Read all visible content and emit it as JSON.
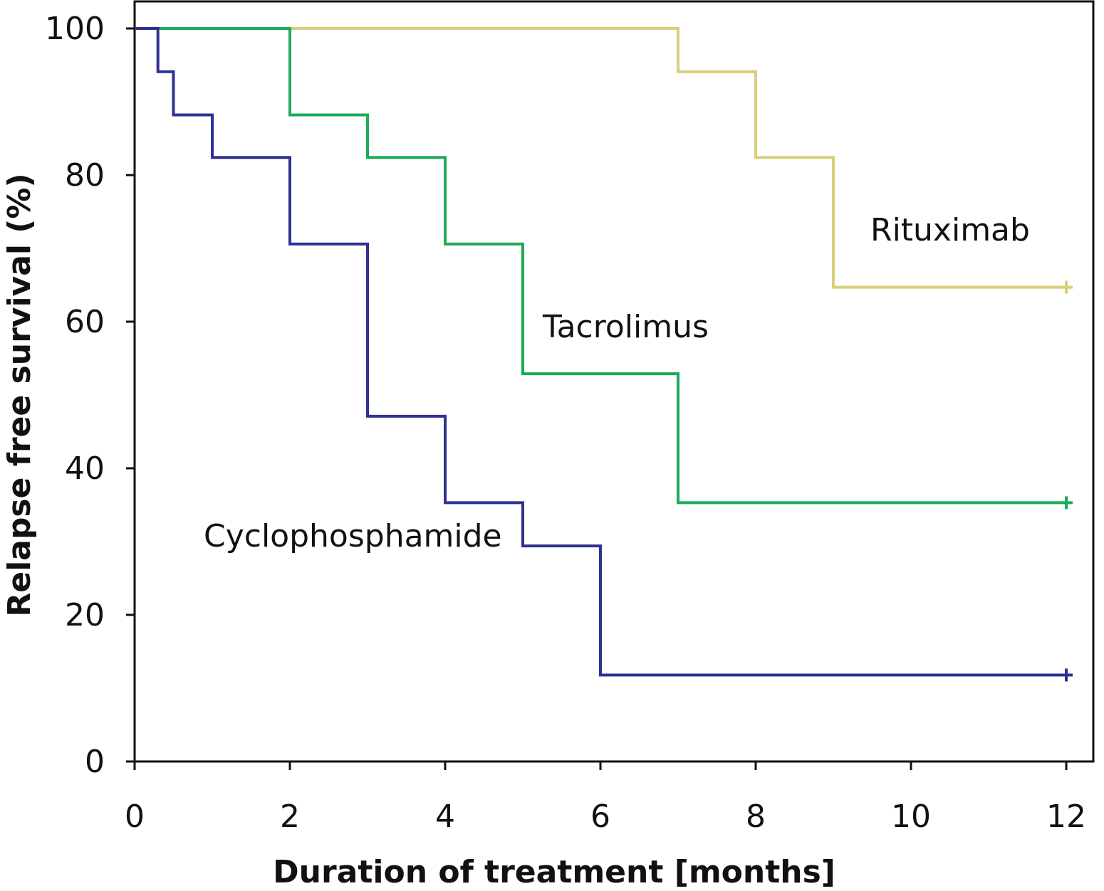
{
  "chart_data": {
    "type": "line",
    "step": true,
    "xlabel": "Duration of treatment [months]",
    "ylabel": "Relapse free survival (%)",
    "xlim": [
      0,
      12
    ],
    "ylim": [
      0,
      100
    ],
    "xticks": [
      0,
      2,
      4,
      6,
      8,
      10,
      12
    ],
    "yticks": [
      0,
      20,
      40,
      60,
      80,
      100
    ],
    "grid": false,
    "legend": "inline labels",
    "series": [
      {
        "name": "Rituximab",
        "color": "#d8cf7a",
        "censor_end": true,
        "x": [
          0,
          7,
          8,
          9,
          12
        ],
        "y": [
          100,
          94.1,
          82.4,
          64.7,
          64.7
        ]
      },
      {
        "name": "Tacrolimus",
        "color": "#1faa5a",
        "censor_end": true,
        "x": [
          0,
          2,
          3,
          4,
          5,
          7,
          12
        ],
        "y": [
          100,
          88.2,
          82.4,
          70.6,
          52.9,
          35.3,
          35.3
        ]
      },
      {
        "name": "Cyclophosphamide",
        "color": "#2e3192",
        "censor_end": true,
        "x": [
          0,
          0.3,
          0.5,
          1,
          2,
          3,
          4,
          5,
          6,
          12
        ],
        "y": [
          100,
          94.1,
          88.2,
          82.4,
          70.6,
          47.1,
          35.3,
          29.4,
          11.8,
          11.8
        ]
      }
    ]
  }
}
